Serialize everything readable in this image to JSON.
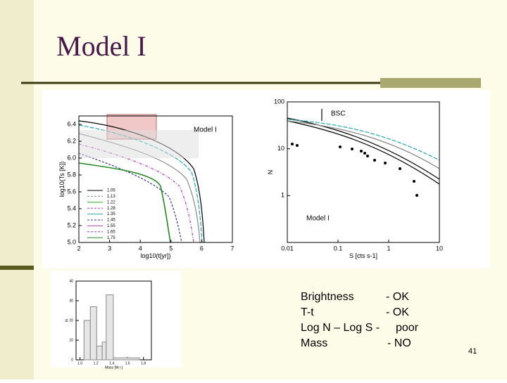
{
  "title": "Model I",
  "figures": {
    "cooling": {
      "ylabel": "log10(Ts [K])",
      "xlabel": "log10(t[yr])",
      "annotation": "Model I",
      "xlim": [
        2,
        7
      ],
      "xticks": [
        2,
        3,
        4,
        5,
        6,
        7
      ],
      "ylim": [
        5.0,
        6.5
      ],
      "yticks": [
        {
          "value": 5,
          "label": "5.0"
        },
        5.2,
        5.4,
        5.6,
        5.8,
        {
          "value": 6,
          "label": "6.0"
        },
        6.2,
        6.4
      ],
      "legend": [
        "1.05",
        "1.13",
        "1.22",
        "1.28",
        "1.35",
        "1.45",
        "1.55",
        "1.65",
        "1.75"
      ]
    },
    "logns": {
      "ylabel": "N",
      "xlabel": "S [cts s-1]",
      "annotation": "Model I",
      "marker": "BSC",
      "log_scale": true,
      "xlim": [
        0.01,
        10
      ],
      "xticks": [
        0.01,
        0.1,
        1,
        10
      ],
      "ylim": [
        0.1,
        100
      ],
      "yticks": [
        1,
        10,
        100
      ]
    },
    "mass": {
      "type": "histogram",
      "ylabel": "N",
      "xlabel": "Mass [M☉]",
      "bins": [
        1.05,
        1.13,
        1.21,
        1.28,
        1.33,
        1.42,
        1.75
      ],
      "counts": [
        20,
        27,
        7,
        9,
        33,
        1
      ],
      "xlim": [
        0.95,
        1.9
      ],
      "xticks": [
        {
          "value": 1,
          "label": "1.0"
        },
        1.2,
        1.4,
        1.6,
        1.8
      ],
      "ylim": [
        0,
        40
      ],
      "yticks": [
        0,
        10,
        20,
        30,
        40
      ]
    }
  },
  "bullets": [
    {
      "label": "Brightness",
      "status": "- OK"
    },
    {
      "label": "T-t",
      "status": "- OK"
    },
    {
      "label": "Log N – Log S -",
      "status": "poor"
    },
    {
      "label": "Mass",
      "status": "- NO"
    }
  ],
  "page_number": "41"
}
